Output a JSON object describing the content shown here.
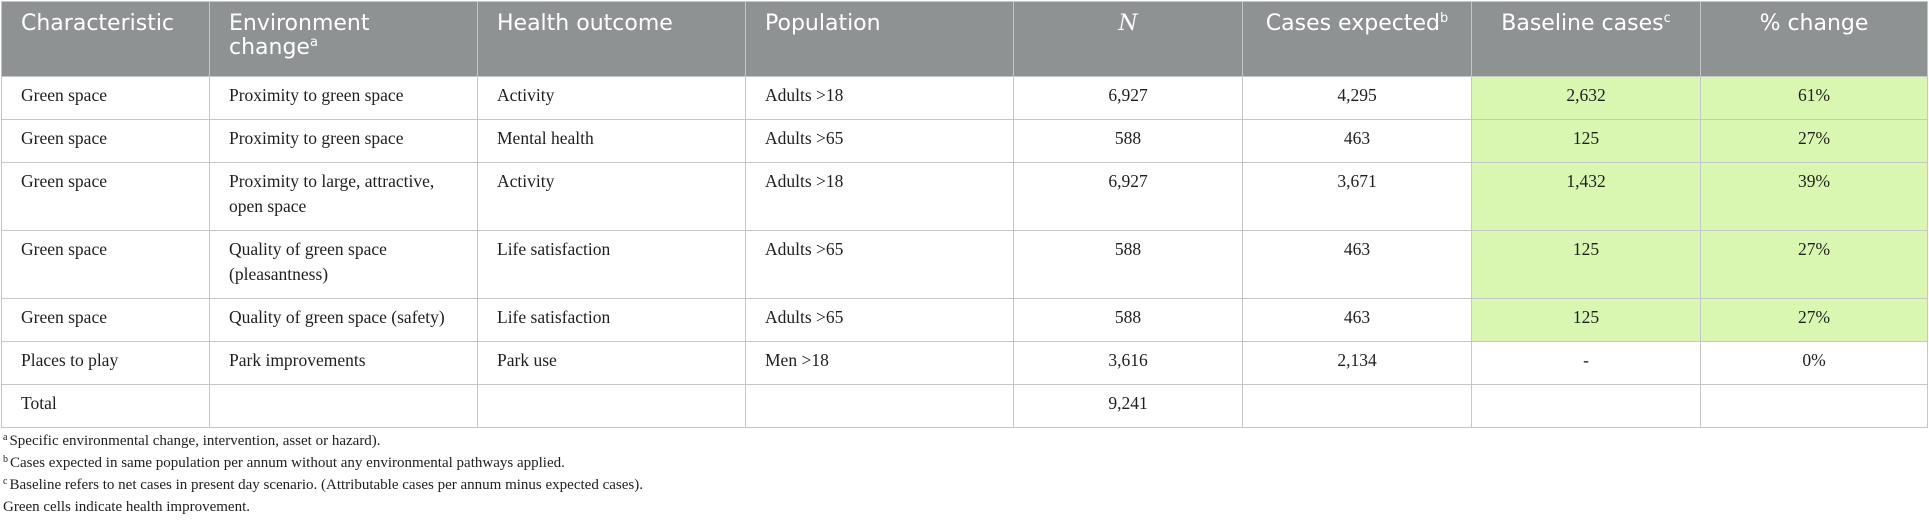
{
  "table": {
    "headers": {
      "characteristic": "Characteristic",
      "environment_change": "Environment change",
      "environment_change_sup": "a",
      "health_outcome": "Health outcome",
      "population": "Population",
      "n": "N",
      "cases_expected": "Cases expected",
      "cases_expected_sup": "b",
      "baseline_cases": "Baseline cases",
      "baseline_cases_sup": "c",
      "pct_change": "% change"
    },
    "rows": [
      {
        "characteristic": "Green space",
        "environment_change": "Proximity to green space",
        "health_outcome": "Activity",
        "population": "Adults >18",
        "n": "6,927",
        "cases_expected": "4,295",
        "baseline_cases": "2,632",
        "pct_change": "61%"
      },
      {
        "characteristic": "Green space",
        "environment_change": "Proximity to green space",
        "health_outcome": "Mental health",
        "population": "Adults >65",
        "n": "588",
        "cases_expected": "463",
        "baseline_cases": "125",
        "pct_change": "27%"
      },
      {
        "characteristic": "Green space",
        "environment_change": "Proximity to large, attractive, open space",
        "health_outcome": "Activity",
        "population": "Adults >18",
        "n": "6,927",
        "cases_expected": "3,671",
        "baseline_cases": "1,432",
        "pct_change": "39%"
      },
      {
        "characteristic": "Green space",
        "environment_change": "Quality of green space (pleasantness)",
        "health_outcome": "Life satisfaction",
        "population": "Adults >65",
        "n": "588",
        "cases_expected": "463",
        "baseline_cases": "125",
        "pct_change": "27%"
      },
      {
        "characteristic": "Green space",
        "environment_change": "Quality of green space (safety)",
        "health_outcome": "Life satisfaction",
        "population": "Adults >65",
        "n": "588",
        "cases_expected": "463",
        "baseline_cases": "125",
        "pct_change": "27%"
      },
      {
        "characteristic": "Places to play",
        "environment_change": "Park improvements",
        "health_outcome": "Park use",
        "population": "Men >18",
        "n": "3,616",
        "cases_expected": "2,134",
        "baseline_cases": "-",
        "pct_change": "0%"
      },
      {
        "characteristic": "Total",
        "environment_change": "",
        "health_outcome": "",
        "population": "",
        "n": "9,241",
        "cases_expected": "",
        "baseline_cases": "",
        "pct_change": ""
      }
    ],
    "green_highlight_color": "#d9f7b0",
    "header_color": "#8e9293"
  },
  "footnotes": [
    {
      "mark": "a",
      "text": "Specific environmental change, intervention, asset or hazard)."
    },
    {
      "mark": "b",
      "text": "Cases expected in same population per annum without any environmental pathways applied."
    },
    {
      "mark": "c",
      "text": "Baseline refers to net cases in present day scenario. (Attributable cases per annum minus expected cases)."
    },
    {
      "mark": "",
      "text": "Green cells indicate health improvement."
    }
  ]
}
